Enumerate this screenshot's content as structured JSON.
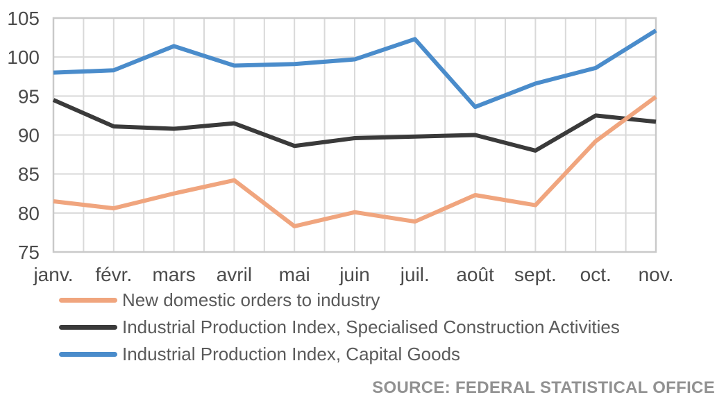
{
  "chart_data": {
    "type": "line",
    "categories": [
      "janv.",
      "févr.",
      "mars",
      "avril",
      "mai",
      "juin",
      "juil.",
      "août",
      "sept.",
      "oct.",
      "nov."
    ],
    "series": [
      {
        "name": "New domestic orders to industry",
        "color": "#F0A57E",
        "values": [
          81.5,
          80.6,
          82.5,
          84.2,
          78.3,
          80.1,
          78.9,
          82.3,
          81.0,
          89.2,
          94.9
        ]
      },
      {
        "name": "Industrial Production Index, Specialised Construction Activities",
        "color": "#3A3A3A",
        "values": [
          94.5,
          91.1,
          90.8,
          91.5,
          88.6,
          89.6,
          89.8,
          90.0,
          88.0,
          92.5,
          91.7
        ]
      },
      {
        "name": "Industrial Production Index, Capital Goods",
        "color": "#4A8CCB",
        "values": [
          98.0,
          98.3,
          101.4,
          98.9,
          99.1,
          99.7,
          102.3,
          93.6,
          96.6,
          98.6,
          103.4
        ]
      }
    ],
    "title": "",
    "xlabel": "",
    "ylabel": "",
    "ylim": [
      75,
      105
    ],
    "yticks": [
      75,
      80,
      85,
      90,
      95,
      100,
      105
    ],
    "grid": true,
    "vertical_grid_subdivisions": 2,
    "legend_position": "bottom-left",
    "plot_order": [
      2,
      1,
      0
    ]
  },
  "footer": {
    "source": "SOURCE: FEDERAL STATISTICAL OFFICE"
  },
  "colors": {
    "background": "#FFFFFF",
    "grid": "#D9D9D9",
    "grid_border": "#C9C9C9",
    "axis_text": "#4B4B4B",
    "legend_text": "#5A5A5A",
    "source_text": "#919191"
  }
}
